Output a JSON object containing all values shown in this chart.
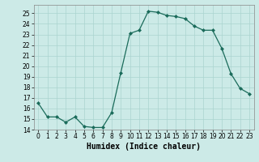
{
  "x": [
    0,
    1,
    2,
    3,
    4,
    5,
    6,
    7,
    8,
    9,
    10,
    11,
    12,
    13,
    14,
    15,
    16,
    17,
    18,
    19,
    20,
    21,
    22,
    23
  ],
  "y": [
    16.5,
    15.2,
    15.2,
    14.7,
    15.2,
    14.3,
    14.2,
    14.2,
    15.6,
    19.4,
    23.1,
    23.4,
    25.2,
    25.1,
    24.8,
    24.7,
    24.5,
    23.8,
    23.4,
    23.4,
    21.7,
    19.3,
    17.9,
    17.4
  ],
  "line_color": "#1a6b5a",
  "marker": "D",
  "marker_size": 2,
  "bg_color": "#cceae7",
  "grid_color": "#aad4d0",
  "xlabel": "Humidex (Indice chaleur)",
  "xlim": [
    -0.5,
    23.5
  ],
  "ylim": [
    14,
    25.8
  ],
  "yticks": [
    14,
    15,
    16,
    17,
    18,
    19,
    20,
    21,
    22,
    23,
    24,
    25
  ],
  "xticks": [
    0,
    1,
    2,
    3,
    4,
    5,
    6,
    7,
    8,
    9,
    10,
    11,
    12,
    13,
    14,
    15,
    16,
    17,
    18,
    19,
    20,
    21,
    22,
    23
  ],
  "tick_fontsize": 5.5,
  "xlabel_fontsize": 7
}
